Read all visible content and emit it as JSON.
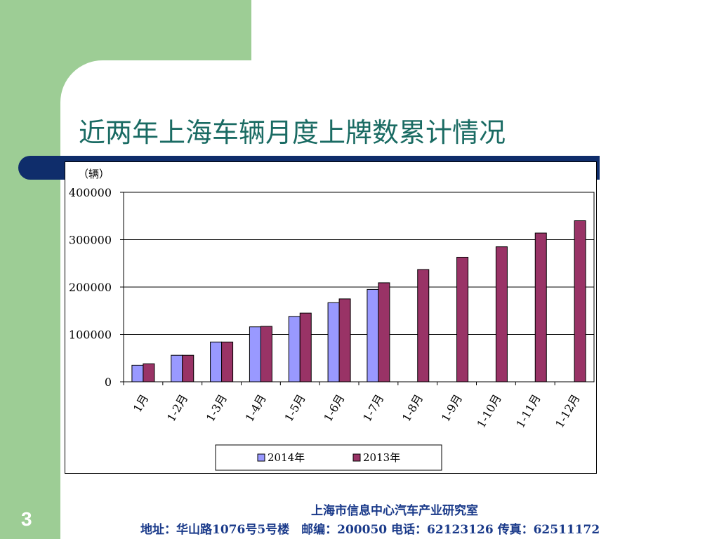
{
  "slide": {
    "title": "近两年上海车辆月度上牌数累计情况",
    "page_number": "3",
    "footer_org": "上海市信息中心汽车产业研究室",
    "footer_contact": "地址：华山路1076号5号楼　邮编：200050  电话：62123126  传真：62511172"
  },
  "colors": {
    "background_green": "#9dcd95",
    "title_text": "#1a6b63",
    "title_bar": "#0f2d6b",
    "series_2014": "#9999ff",
    "series_2013": "#993366",
    "footer_text": "#1a3a8a"
  },
  "chart_data": {
    "type": "bar",
    "unit_label": "（辆）",
    "categories": [
      "1月",
      "1-2月",
      "1-3月",
      "1-4月",
      "1-5月",
      "1-6月",
      "1-7月",
      "1-8月",
      "1-9月",
      "1-10月",
      "1-11月",
      "1-12月"
    ],
    "series": [
      {
        "name": "2014年",
        "color": "#9999ff",
        "values": [
          35000,
          56000,
          84000,
          116000,
          138000,
          167000,
          195000,
          null,
          null,
          null,
          null,
          null
        ]
      },
      {
        "name": "2013年",
        "color": "#993366",
        "values": [
          38000,
          56000,
          84000,
          117000,
          145000,
          175000,
          209000,
          237000,
          263000,
          285000,
          314000,
          340000
        ]
      }
    ],
    "ylim": [
      0,
      400000
    ],
    "yticks": [
      0,
      100000,
      200000,
      300000,
      400000
    ],
    "grid": true,
    "legend_position": "bottom"
  }
}
